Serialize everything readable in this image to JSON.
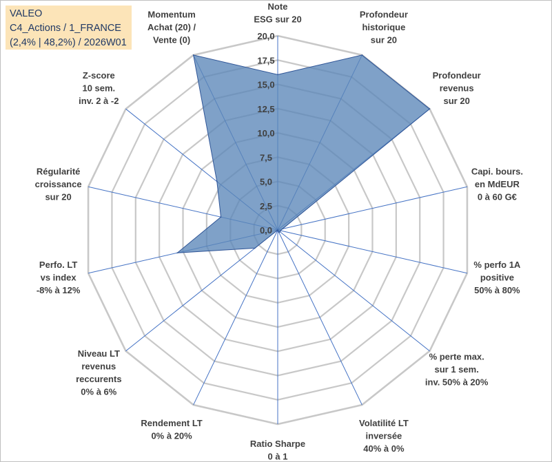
{
  "chart_data": {
    "type": "radar",
    "title_lines": [
      "VALEO",
      "C4_Actions / 1_FRANCE",
      "(2,4% | 48,2%) / 2026W01"
    ],
    "r_min": 0,
    "r_max": 20,
    "r_step": 2.5,
    "r_ticks": [
      "0,0",
      "2,5",
      "5,0",
      "7,5",
      "10,0",
      "12,5",
      "15,0",
      "17,5",
      "20,0"
    ],
    "axes": [
      {
        "label": [
          "Note",
          "ESG sur 20"
        ],
        "value": 16.0
      },
      {
        "label": [
          "Profondeur",
          "historique",
          "sur 20"
        ],
        "value": 20.0
      },
      {
        "label": [
          "Profondeur",
          "revenus",
          "sur 20"
        ],
        "value": 20.0
      },
      {
        "label": [
          "Capi. bours.",
          "en MdEUR",
          "0 à 60 G€"
        ],
        "value": 0.5
      },
      {
        "label": [
          "% perfo 1A",
          "positive",
          "50% à 80%"
        ],
        "value": 0.3
      },
      {
        "label": [
          "% perte max.",
          "sur 1 sem.",
          "inv. 50% à 20%"
        ],
        "value": 0.3
      },
      {
        "label": [
          "Volatilité LT",
          "inversée",
          "40% à 0%"
        ],
        "value": 0.3
      },
      {
        "label": [
          "Ratio Sharpe",
          "0 à 1"
        ],
        "value": 0.0
      },
      {
        "label": [
          "Rendement LT",
          "0% à 20%"
        ],
        "value": 0.0
      },
      {
        "label": [
          "Niveau LT",
          "revenus",
          "reccurents",
          "0% à 6%"
        ],
        "value": 3.0
      },
      {
        "label": [
          "Perfo. LT",
          "vs index",
          "-8% à 12%"
        ],
        "value": 10.6
      },
      {
        "label": [
          "Régularité",
          "croissance",
          "sur 20"
        ],
        "value": 6.0
      },
      {
        "label": [
          "Z-score",
          "10 sem.",
          "inv. 2 à -2"
        ],
        "value": 8.0
      },
      {
        "label": [
          "Momentum",
          "Achat (20) /",
          "Vente (0)"
        ],
        "value": 20.0
      }
    ],
    "series": [
      {
        "name": "VALEO",
        "color": "#5b86b8",
        "fill_opacity": 0.78,
        "edge": "#2f5597"
      }
    ],
    "grid_color": "#c8c8c8",
    "spoke_color": "#4472c4"
  }
}
